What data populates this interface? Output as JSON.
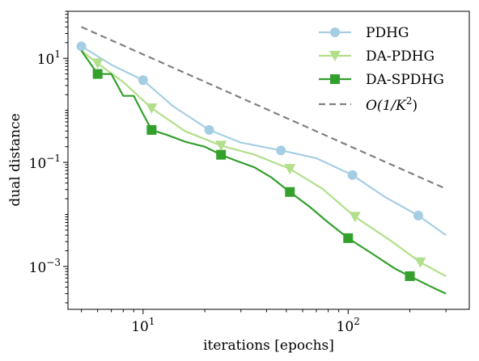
{
  "chart_data": {
    "type": "line",
    "title": "",
    "xlabel": "iterations [epochs]",
    "ylabel": "dual distance",
    "xscale": "log",
    "yscale": "log",
    "xlim": [
      4.3,
      390
    ],
    "ylim": [
      0.00015,
      80
    ],
    "xticks": [
      {
        "value": 10,
        "base": "10",
        "exp": "1"
      },
      {
        "value": 100,
        "base": "10",
        "exp": "2"
      }
    ],
    "yticks": [
      {
        "value": 0.001,
        "base": "10",
        "exp": "−3"
      },
      {
        "value": 0.1,
        "base": "10",
        "exp": "−1"
      },
      {
        "value": 10,
        "base": "10",
        "exp": "1"
      }
    ],
    "grid": false,
    "legend_position": "top-right",
    "series": [
      {
        "name": "PDHG",
        "color": "#a6cee3",
        "marker": "circle",
        "line": "solid",
        "x": [
          5,
          7,
          10,
          14,
          21,
          30,
          47,
          70,
          105,
          150,
          220,
          300
        ],
        "y": [
          17,
          7.5,
          3.8,
          1.2,
          0.42,
          0.24,
          0.17,
          0.12,
          0.057,
          0.022,
          0.0095,
          0.004
        ],
        "markers_x": [
          5,
          10,
          21,
          47,
          105,
          220
        ]
      },
      {
        "name": "DA-PDHG",
        "color": "#b2df8a",
        "marker": "triangle-down",
        "line": "solid",
        "x": [
          5,
          6,
          8,
          11,
          16,
          24,
          35,
          52,
          75,
          108,
          160,
          225,
          300
        ],
        "y": [
          14,
          8,
          3.5,
          1.1,
          0.4,
          0.21,
          0.14,
          0.075,
          0.031,
          0.009,
          0.0032,
          0.0012,
          0.00065
        ],
        "markers_x": [
          6,
          11,
          24,
          52,
          108,
          225
        ]
      },
      {
        "name": "DA-SPDHG",
        "color": "#33a02c",
        "marker": "square",
        "line": "solid",
        "x": [
          5,
          6,
          7,
          8,
          9,
          10,
          11,
          13,
          16,
          20,
          24,
          28,
          35,
          42,
          52,
          65,
          80,
          100,
          130,
          170,
          200,
          250,
          300
        ],
        "y": [
          14,
          5,
          5,
          1.9,
          1.9,
          0.85,
          0.42,
          0.34,
          0.25,
          0.2,
          0.14,
          0.11,
          0.08,
          0.052,
          0.027,
          0.014,
          0.007,
          0.0035,
          0.0018,
          0.0009,
          0.00065,
          0.00042,
          0.0003
        ],
        "markers_x": [
          6,
          11,
          24,
          52,
          100,
          200
        ]
      },
      {
        "name": "O(1/K²)",
        "name_parts": {
          "o": "O(1/",
          "k": "K",
          "sup": "2",
          "close": ")"
        },
        "color": "#808080",
        "marker": "none",
        "line": "dashed",
        "x": [
          5,
          300
        ],
        "y": [
          40,
          0.031
        ],
        "markers_x": []
      }
    ]
  }
}
